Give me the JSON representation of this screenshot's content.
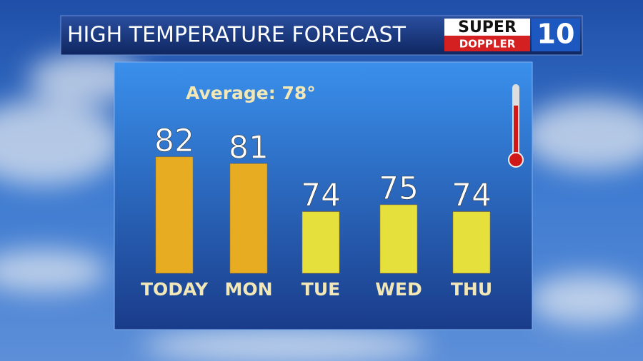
{
  "chart_data": {
    "type": "bar",
    "title": "HIGH TEMPERATURE FORECAST",
    "annotation": "Average: 78°",
    "logo": {
      "line1": "SUPER",
      "line2": "DOPPLER",
      "number": "10"
    },
    "categories": [
      "TODAY",
      "MON",
      "TUE",
      "WED",
      "THU"
    ],
    "values": [
      82,
      81,
      74,
      75,
      74
    ],
    "colors": [
      "#e8ac22",
      "#e8ac22",
      "#e6e03c",
      "#e6e03c",
      "#e6e03c"
    ],
    "ylim": [
      65,
      85
    ]
  }
}
